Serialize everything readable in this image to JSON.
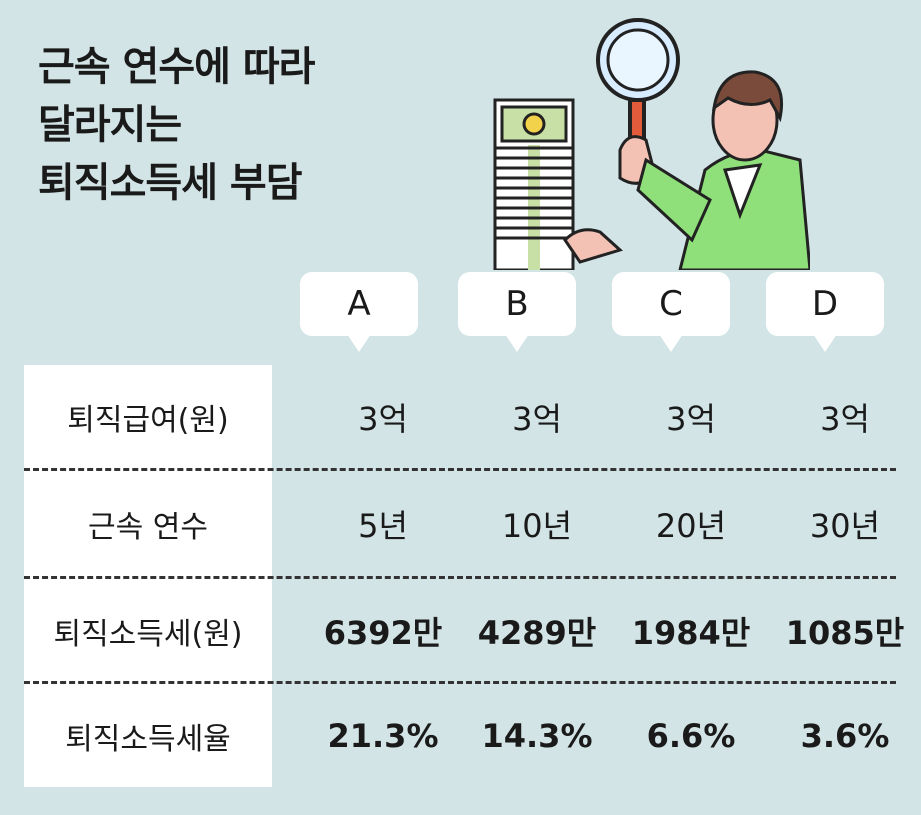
{
  "title": {
    "line1": "근속 연수에 따라",
    "line2": "달라지는",
    "line3": "퇴직소득세 부담"
  },
  "columns": [
    "A",
    "B",
    "C",
    "D"
  ],
  "rows": [
    {
      "label": "퇴직급여(원)",
      "values": [
        "3억",
        "3억",
        "3억",
        "3억"
      ]
    },
    {
      "label": "근속 연수",
      "values": [
        "5년",
        "10년",
        "20년",
        "30년"
      ]
    },
    {
      "label": "퇴직소득세(원)",
      "values": [
        "6392만",
        "4289만",
        "1984만",
        "1085만"
      ]
    },
    {
      "label": "퇴직소득세율",
      "values": [
        "21.3%",
        "14.3%",
        "6.6%",
        "3.6%"
      ]
    }
  ],
  "colors": {
    "background": "#d3e4e6",
    "cell": "#ffffff",
    "jacket": "#8fe07a",
    "money": "#c8e0a6"
  }
}
